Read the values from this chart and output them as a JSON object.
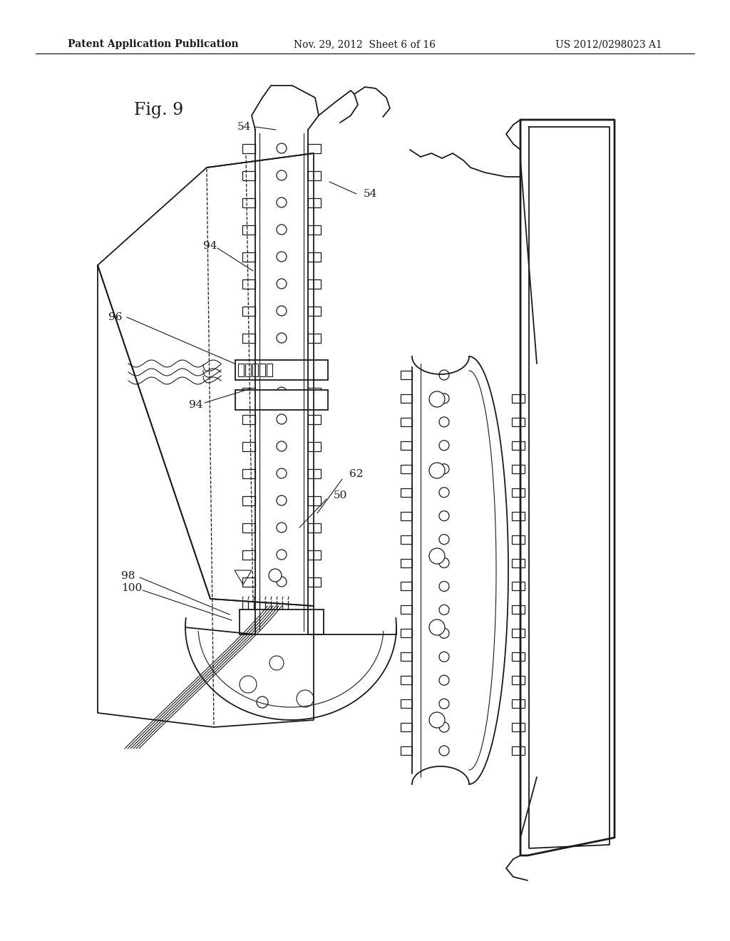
{
  "bg_color": "#ffffff",
  "line_color": "#1a1a1a",
  "header_left": "Patent Application Publication",
  "header_center": "Nov. 29, 2012  Sheet 6 of 16",
  "header_right": "US 2012/0298023 A1",
  "fig_label": "Fig. 9"
}
